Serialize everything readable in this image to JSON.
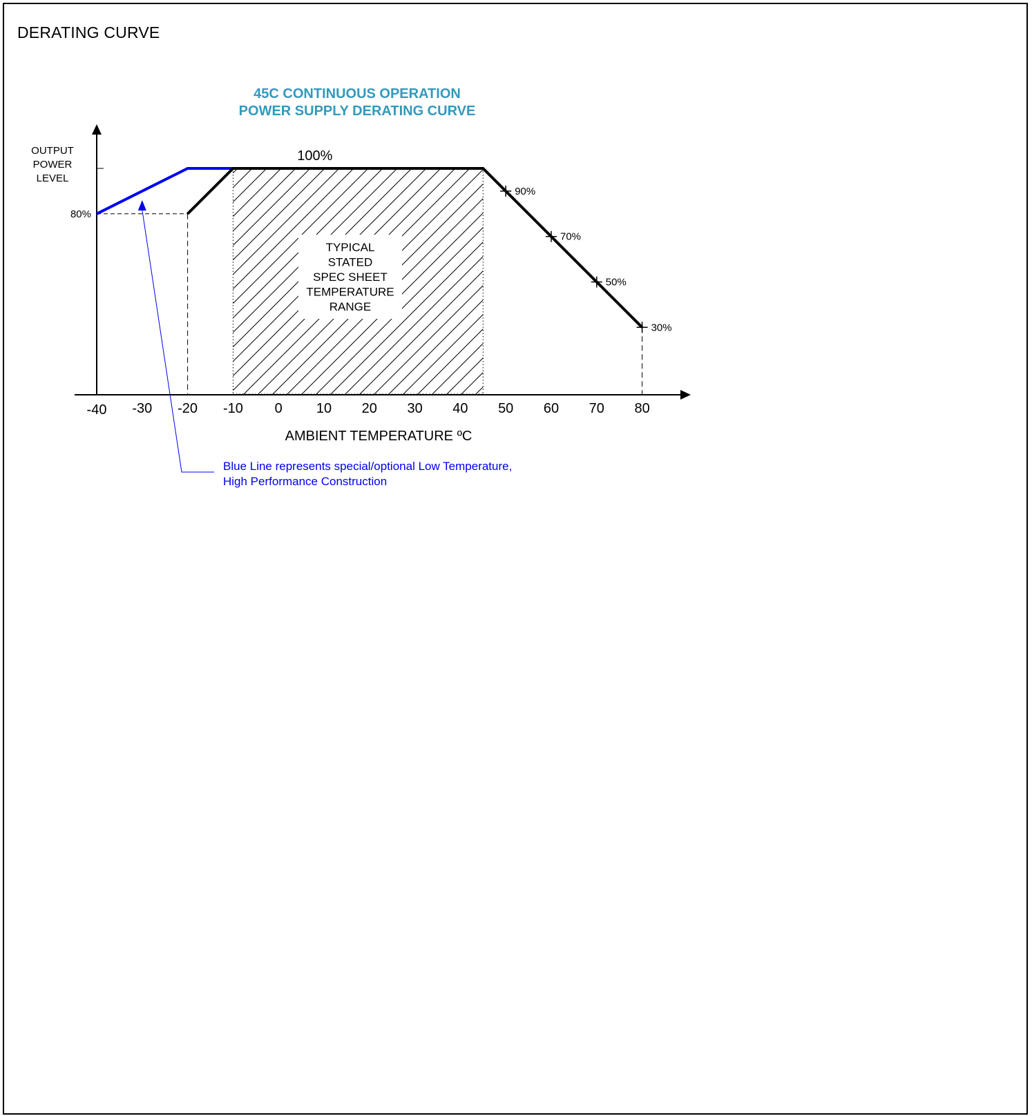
{
  "page": {
    "heading": "DERATING CURVE"
  },
  "chart_data": {
    "type": "line",
    "title": [
      "45C CONTINUOUS OPERATION",
      "POWER SUPPLY DERATING CURVE"
    ],
    "xlabel": "AMBIENT TEMPERATURE ºC",
    "ylabel": [
      "OUTPUT",
      "POWER",
      "LEVEL"
    ],
    "xlim": [
      -40,
      80
    ],
    "ylim": [
      0,
      100
    ],
    "x_ticks": [
      -40,
      -30,
      -20,
      -10,
      0,
      10,
      20,
      30,
      40,
      50,
      60,
      70,
      80
    ],
    "y_tick_labels": [
      {
        "y": 80,
        "label": "80%"
      }
    ],
    "series": [
      {
        "color": "#0000ee",
        "points": [
          {
            "x": -40,
            "y": 80
          },
          {
            "x": -20,
            "y": 100
          },
          {
            "x": -10,
            "y": 100
          }
        ]
      },
      {
        "color": "#000000",
        "points": [
          {
            "x": -20,
            "y": 80
          },
          {
            "x": -10,
            "y": 100
          },
          {
            "x": 45,
            "y": 100
          },
          {
            "x": 80,
            "y": 30
          }
        ]
      }
    ],
    "point_labels": [
      {
        "x": 50,
        "y": 90,
        "label": "90%"
      },
      {
        "x": 60,
        "y": 70,
        "label": "70%"
      },
      {
        "x": 70,
        "y": 50,
        "label": "50%"
      },
      {
        "x": 80,
        "y": 30,
        "label": "30%"
      }
    ],
    "top_label": {
      "x": 8,
      "y": 100,
      "label": "100%"
    },
    "shaded_region": {
      "x_range": [
        -10,
        45
      ],
      "fill": "hatched",
      "label": [
        "TYPICAL",
        "STATED",
        "SPEC SHEET",
        "TEMPERATURE",
        "RANGE"
      ]
    },
    "annotation": {
      "text": [
        "Blue Line represents special/optional Low Temperature,",
        "High Performance Construction"
      ],
      "color": "#0000ee",
      "points_to": {
        "x": -30,
        "y": 86
      }
    },
    "title_color": "#3399bb",
    "grid": false,
    "legend": "none"
  }
}
